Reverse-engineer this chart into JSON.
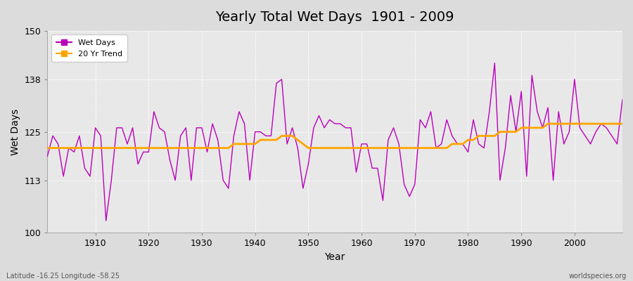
{
  "title": "Yearly Total Wet Days  1901 - 2009",
  "xlabel": "Year",
  "ylabel": "Wet Days",
  "footnote_left": "Latitude -16.25 Longitude -58.25",
  "footnote_right": "worldspecies.org",
  "ylim": [
    100,
    150
  ],
  "xlim": [
    1901,
    2009
  ],
  "yticks": [
    100,
    113,
    125,
    138,
    150
  ],
  "xticks": [
    1910,
    1920,
    1930,
    1940,
    1950,
    1960,
    1970,
    1980,
    1990,
    2000
  ],
  "bg_color": "#dcdcdc",
  "plot_bg_color": "#e8e8e8",
  "wet_days_color": "#bb00bb",
  "trend_color": "#ffa500",
  "wet_days": [
    119,
    124,
    122,
    114,
    121,
    120,
    124,
    116,
    114,
    126,
    124,
    103,
    113,
    126,
    126,
    122,
    126,
    117,
    120,
    120,
    130,
    126,
    125,
    118,
    113,
    124,
    126,
    113,
    126,
    126,
    120,
    127,
    123,
    113,
    111,
    124,
    130,
    127,
    113,
    125,
    125,
    124,
    124,
    137,
    138,
    122,
    126,
    121,
    111,
    117,
    126,
    129,
    126,
    128,
    127,
    127,
    126,
    126,
    115,
    122,
    122,
    116,
    116,
    108,
    123,
    126,
    122,
    112,
    109,
    112,
    128,
    126,
    130,
    121,
    122,
    128,
    124,
    122,
    122,
    120,
    128,
    122,
    121,
    130,
    142,
    113,
    121,
    134,
    125,
    135,
    114,
    139,
    130,
    126,
    131,
    113,
    130,
    122,
    125,
    138,
    126,
    124,
    122,
    125,
    127,
    126,
    124,
    122,
    133
  ],
  "trend": [
    121,
    121,
    121,
    121,
    121,
    121,
    121,
    121,
    121,
    121,
    121,
    121,
    121,
    121,
    121,
    121,
    121,
    121,
    121,
    121,
    121,
    121,
    121,
    121,
    121,
    121,
    121,
    121,
    121,
    121,
    121,
    121,
    121,
    121,
    121,
    122,
    122,
    122,
    122,
    122,
    123,
    123,
    123,
    123,
    124,
    124,
    124,
    123,
    122,
    121,
    121,
    121,
    121,
    121,
    121,
    121,
    121,
    121,
    121,
    121,
    121,
    121,
    121,
    121,
    121,
    121,
    121,
    121,
    121,
    121,
    121,
    121,
    121,
    121,
    121,
    121,
    122,
    122,
    122,
    123,
    123,
    124,
    124,
    124,
    124,
    125,
    125,
    125,
    125,
    126,
    126,
    126,
    126,
    126,
    127,
    127,
    127,
    127,
    127,
    127,
    127,
    127,
    127,
    127,
    127,
    127,
    127,
    127,
    127
  ]
}
